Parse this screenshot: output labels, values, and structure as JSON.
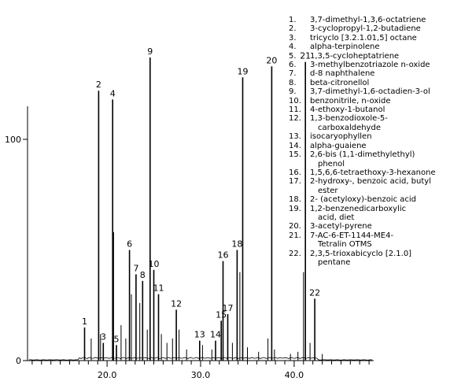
{
  "chart_data": {
    "type": "bar",
    "xlim": [
      11.5,
      48.5
    ],
    "ylim": [
      0,
      100
    ],
    "x_ticks": [
      {
        "value": 20,
        "label": "20.0"
      },
      {
        "value": 30,
        "label": "30.0"
      },
      {
        "value": 40,
        "label": "40.0"
      }
    ],
    "y_ticks": [
      {
        "value": 0,
        "label": "0"
      },
      {
        "value": 100,
        "label": "100"
      }
    ],
    "grid": false,
    "legend_position": "top-right",
    "peaks": [
      {
        "label": "1",
        "rt": 17.6,
        "value": 15
      },
      {
        "label": "2",
        "rt": 19.1,
        "value": 122
      },
      {
        "label": "3",
        "rt": 19.6,
        "value": 8
      },
      {
        "label": "4",
        "rt": 20.6,
        "value": 118
      },
      {
        "label": "5",
        "rt": 21.0,
        "value": 7
      },
      {
        "label": "6",
        "rt": 22.4,
        "value": 50
      },
      {
        "label": "7",
        "rt": 23.1,
        "value": 39
      },
      {
        "label": "8",
        "rt": 23.8,
        "value": 36
      },
      {
        "label": "9",
        "rt": 24.6,
        "value": 137
      },
      {
        "label": "10",
        "rt": 25.0,
        "value": 41
      },
      {
        "label": "11",
        "rt": 25.5,
        "value": 30
      },
      {
        "label": "12",
        "rt": 27.4,
        "value": 23
      },
      {
        "label": "13",
        "rt": 29.9,
        "value": 9
      },
      {
        "label": "14",
        "rt": 31.6,
        "value": 9
      },
      {
        "label": "15",
        "rt": 32.2,
        "value": 18
      },
      {
        "label": "16",
        "rt": 32.4,
        "value": 45
      },
      {
        "label": "17",
        "rt": 32.9,
        "value": 21
      },
      {
        "label": "18",
        "rt": 33.9,
        "value": 50
      },
      {
        "label": "19",
        "rt": 34.5,
        "value": 128
      },
      {
        "label": "20",
        "rt": 37.6,
        "value": 133
      },
      {
        "label": "21",
        "rt": 41.2,
        "value": 135
      },
      {
        "label": "22",
        "rt": 42.2,
        "value": 28
      }
    ],
    "minor_peaks": [
      {
        "rt": 18.3,
        "value": 10
      },
      {
        "rt": 19.3,
        "value": 12
      },
      {
        "rt": 20.7,
        "value": 58
      },
      {
        "rt": 21.5,
        "value": 16
      },
      {
        "rt": 22.0,
        "value": 10
      },
      {
        "rt": 22.6,
        "value": 30
      },
      {
        "rt": 23.5,
        "value": 26
      },
      {
        "rt": 24.3,
        "value": 14
      },
      {
        "rt": 25.8,
        "value": 12
      },
      {
        "rt": 26.4,
        "value": 8
      },
      {
        "rt": 27.0,
        "value": 10
      },
      {
        "rt": 27.7,
        "value": 14
      },
      {
        "rt": 28.5,
        "value": 5
      },
      {
        "rt": 30.2,
        "value": 7
      },
      {
        "rt": 31.2,
        "value": 5
      },
      {
        "rt": 33.4,
        "value": 8
      },
      {
        "rt": 34.2,
        "value": 40
      },
      {
        "rt": 35.0,
        "value": 6
      },
      {
        "rt": 36.2,
        "value": 4
      },
      {
        "rt": 37.2,
        "value": 10
      },
      {
        "rt": 37.9,
        "value": 5
      },
      {
        "rt": 39.6,
        "value": 3
      },
      {
        "rt": 40.4,
        "value": 4
      },
      {
        "rt": 41.0,
        "value": 40
      },
      {
        "rt": 41.7,
        "value": 8
      },
      {
        "rt": 43.0,
        "value": 3
      }
    ],
    "legend": [
      {
        "num": "1.",
        "lines": [
          "3,7-dimethyl-1,3,6-octatriene"
        ]
      },
      {
        "num": "2.",
        "lines": [
          "3-cyclopropyl-1,2-butadiene"
        ]
      },
      {
        "num": "3.",
        "lines": [
          "tricyclo [3.2.1.01,5] octane"
        ]
      },
      {
        "num": "4.",
        "lines": [
          "alpha-terpinolene"
        ]
      },
      {
        "num": "5.",
        "lines": [
          "1,3,5-cycloheptatriene"
        ]
      },
      {
        "num": "6.",
        "lines": [
          "3-methylbenzotriazole n-oxide"
        ]
      },
      {
        "num": "7.",
        "lines": [
          "d-8 naphthalene"
        ]
      },
      {
        "num": "8.",
        "lines": [
          "beta-citronellol"
        ]
      },
      {
        "num": "9.",
        "lines": [
          "3,7-dimethyl-1,6-octadien-3-ol"
        ]
      },
      {
        "num": "10.",
        "lines": [
          "benzonitrile, n-oxide"
        ]
      },
      {
        "num": "11.",
        "lines": [
          "4-ethoxy-1-butanol"
        ]
      },
      {
        "num": "12.",
        "lines": [
          "1,3-benzodioxole-5-",
          "carboxaldehyde"
        ]
      },
      {
        "num": "13.",
        "lines": [
          "isocaryophyllen"
        ]
      },
      {
        "num": "14.",
        "lines": [
          "alpha-guaiene"
        ]
      },
      {
        "num": "15.",
        "lines": [
          "2,6-bis (1,1-dimethylethyl)",
          "phenol"
        ]
      },
      {
        "num": "16.",
        "lines": [
          "1,5,6,6-tetraethoxy-3-hexanone"
        ]
      },
      {
        "num": "17.",
        "lines": [
          "2-hydroxy-, benzoic acid, butyl",
          "ester"
        ]
      },
      {
        "num": "18.",
        "lines": [
          "2- (acetyloxy)-benzoic acid"
        ]
      },
      {
        "num": "19.",
        "lines": [
          "1,2-benzenedicarboxylic",
          "acid, diet"
        ]
      },
      {
        "num": "20.",
        "lines": [
          "3-acetyl-pyrene"
        ]
      },
      {
        "num": "21.",
        "lines": [
          "7-AC-6-ET-1144-ME4-",
          "Tetralin OTMS"
        ]
      },
      {
        "num": "22.",
        "lines": [
          "2,3,5-trioxabicyclo [2.1.0]",
          "pentane"
        ]
      }
    ]
  }
}
